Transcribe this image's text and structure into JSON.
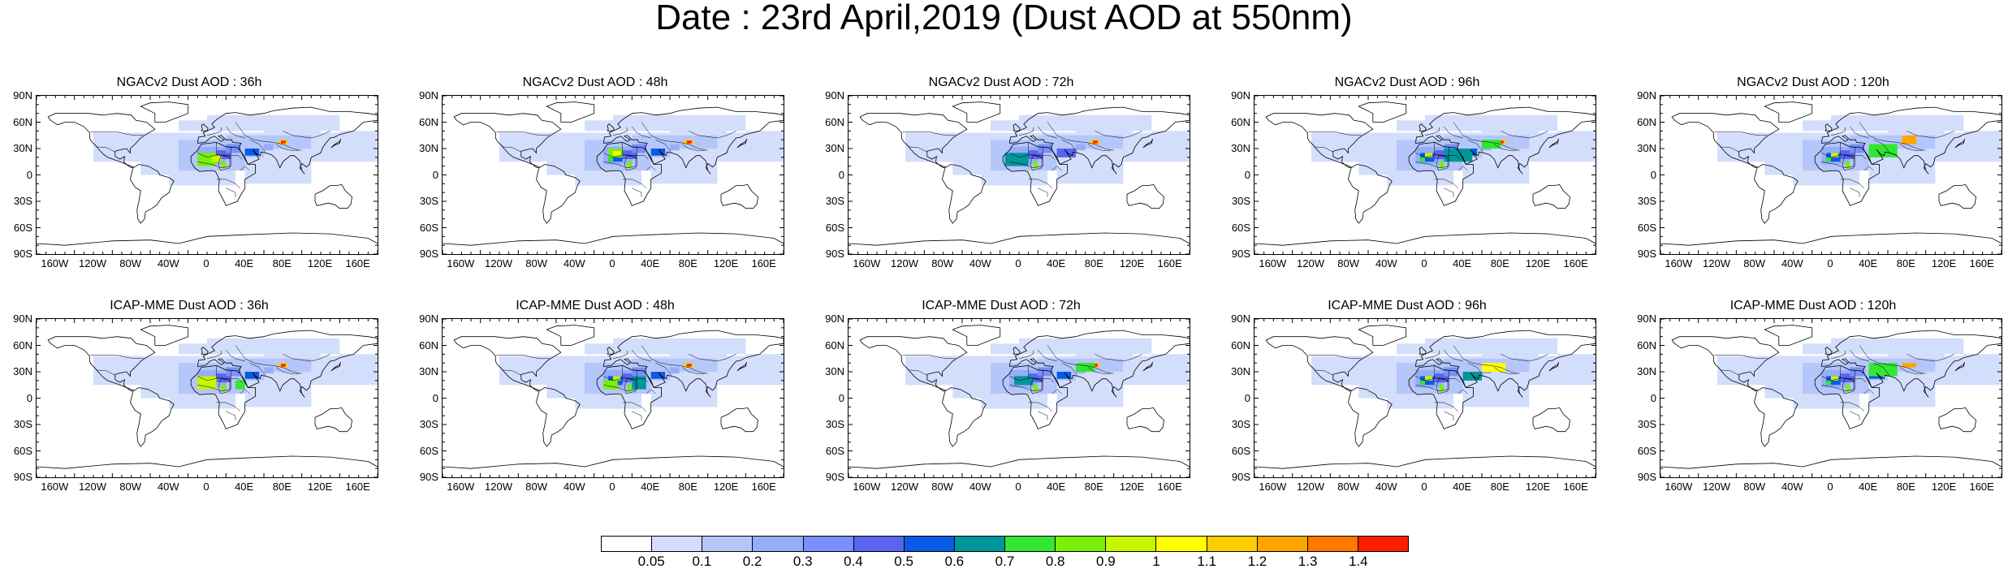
{
  "title": "Date : 23rd April,2019 (Dust AOD at 550nm)",
  "lat_ticks": [
    "90N",
    "60N",
    "30N",
    "0",
    "30S",
    "60S",
    "90S"
  ],
  "lon_ticks": [
    "160W",
    "120W",
    "80W",
    "40W",
    "0",
    "40E",
    "80E",
    "120E",
    "160E"
  ],
  "panels": [
    {
      "title": "NGACv2 Dust AOD : 36h",
      "model": "NGACv2",
      "lead": "36h"
    },
    {
      "title": "NGACv2 Dust AOD : 48h",
      "model": "NGACv2",
      "lead": "48h"
    },
    {
      "title": "NGACv2 Dust AOD : 72h",
      "model": "NGACv2",
      "lead": "72h"
    },
    {
      "title": "NGACv2 Dust AOD : 96h",
      "model": "NGACv2",
      "lead": "96h"
    },
    {
      "title": "NGACv2 Dust AOD : 120h",
      "model": "NGACv2",
      "lead": "120h"
    },
    {
      "title": "ICAP-MME Dust AOD : 36h",
      "model": "ICAP-MME",
      "lead": "36h"
    },
    {
      "title": "ICAP-MME Dust AOD : 48h",
      "model": "ICAP-MME",
      "lead": "48h"
    },
    {
      "title": "ICAP-MME Dust AOD : 72h",
      "model": "ICAP-MME",
      "lead": "72h"
    },
    {
      "title": "ICAP-MME Dust AOD : 96h",
      "model": "ICAP-MME",
      "lead": "96h"
    },
    {
      "title": "ICAP-MME Dust AOD : 120h",
      "model": "ICAP-MME",
      "lead": "120h"
    }
  ],
  "colorbar": {
    "labels": [
      "0.05",
      "0.1",
      "0.2",
      "0.3",
      "0.4",
      "0.5",
      "0.6",
      "0.7",
      "0.8",
      "0.9",
      "1",
      "1.1",
      "1.2",
      "1.3",
      "1.4"
    ],
    "colors": [
      "#ffffff",
      "#d2defc",
      "#b4c6fa",
      "#96aefa",
      "#7890f8",
      "#5a64f0",
      "#0a5ae6",
      "#00969b",
      "#32e632",
      "#78f00a",
      "#c8f500",
      "#ffff00",
      "#ffcd00",
      "#ffa500",
      "#ff7800",
      "#ff1e00"
    ]
  }
}
